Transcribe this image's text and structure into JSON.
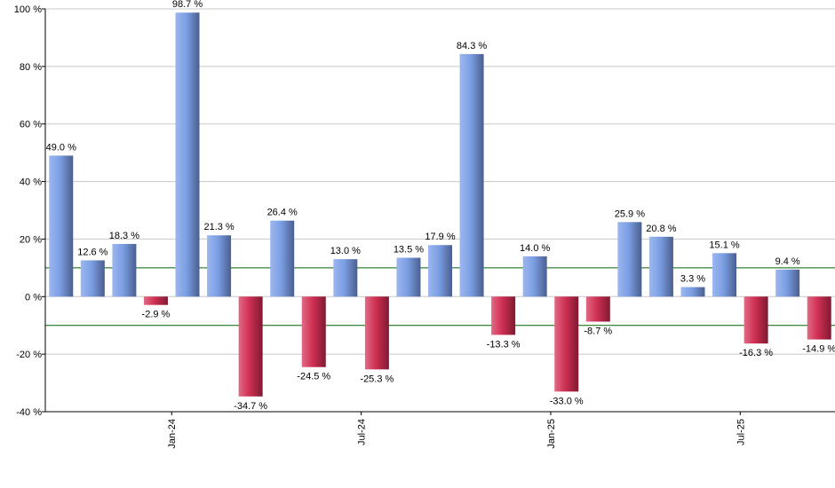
{
  "chart_data": {
    "type": "bar",
    "title": "",
    "xlabel": "",
    "ylabel": "",
    "ylim": [
      -40,
      100
    ],
    "yticks": [
      100,
      80,
      60,
      40,
      20,
      0,
      -20,
      -40
    ],
    "ytick_labels": [
      "100 %",
      "80 %",
      "60 %",
      "40 %",
      "20 %",
      "0 %",
      "-20 %",
      "-40 %"
    ],
    "xtick_labels": [
      "Jan-24",
      "Jul-24",
      "Jan-25",
      "Jul-25"
    ],
    "xtick_positions": [
      3.5,
      9.5,
      15.5,
      21.5
    ],
    "reference_lines": [
      10,
      -10
    ],
    "grid": "horizontal",
    "values": [
      49.0,
      12.6,
      18.3,
      -2.9,
      98.7,
      21.3,
      -34.7,
      26.4,
      -24.5,
      13.0,
      -25.3,
      13.5,
      17.9,
      84.3,
      -13.3,
      14.0,
      -33.0,
      -8.7,
      25.9,
      20.8,
      3.3,
      15.1,
      -16.3,
      9.4,
      -14.9
    ],
    "labels": [
      "49.0 %",
      "12.6 %",
      "18.3 %",
      "-2.9 %",
      "98.7 %",
      "21.3 %",
      "-34.7 %",
      "26.4 %",
      "-24.5 %",
      "13.0 %",
      "-25.3 %",
      "13.5 %",
      "17.9 %",
      "84.3 %",
      "-13.3 %",
      "14.0 %",
      "-33.0 %",
      "-8.7 %",
      "25.9 %",
      "20.8 %",
      "3.3 %",
      "15.1 %",
      "-16.3 %",
      "9.4 %",
      "-14.9 %"
    ],
    "colors": {
      "positive": "#6f8fd6",
      "negative": "#c9284a",
      "reference": "#006400",
      "grid": "#c8c8c8",
      "axis": "#000000"
    }
  }
}
